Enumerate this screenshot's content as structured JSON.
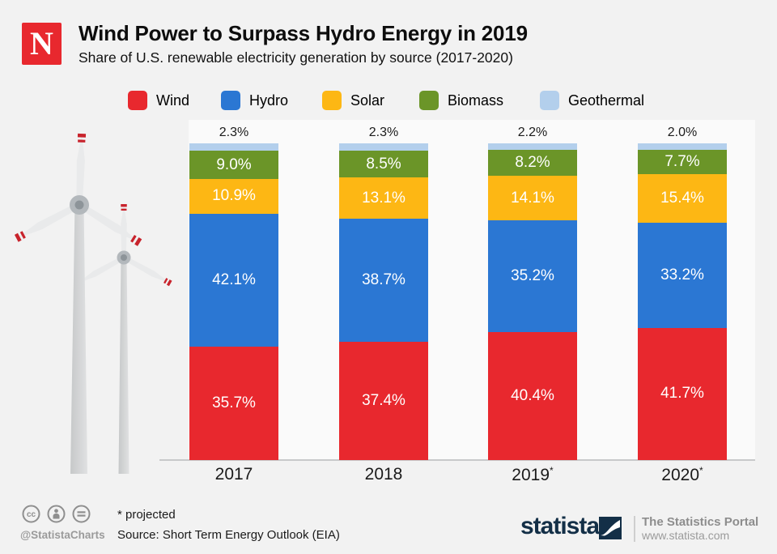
{
  "header": {
    "logo_letter": "N",
    "title": "Wind Power to Surpass Hydro Energy in 2019",
    "subtitle": "Share of U.S. renewable electricity generation by source (2017-2020)"
  },
  "chart_data": {
    "type": "bar",
    "variant": "stacked-percentage",
    "title": "Wind Power to Surpass Hydro Energy in 2019",
    "subtitle": "Share of U.S. renewable electricity generation by source (2017-2020)",
    "unit": "%",
    "ylim": [
      0,
      100
    ],
    "legend_position": "top",
    "categories": [
      {
        "label": "2017",
        "suffix": ""
      },
      {
        "label": "2018",
        "suffix": ""
      },
      {
        "label": "2019",
        "suffix": "*"
      },
      {
        "label": "2020",
        "suffix": "*"
      }
    ],
    "series": [
      {
        "name": "Wind",
        "color": "#e8282e",
        "label_inside": true,
        "values": [
          35.7,
          37.4,
          40.4,
          41.7
        ]
      },
      {
        "name": "Hydro",
        "color": "#2b77d3",
        "label_inside": true,
        "values": [
          42.1,
          38.7,
          35.2,
          33.2
        ]
      },
      {
        "name": "Solar",
        "color": "#fdb714",
        "label_inside": true,
        "values": [
          10.9,
          13.1,
          14.1,
          15.4
        ]
      },
      {
        "name": "Biomass",
        "color": "#6b9528",
        "label_inside": true,
        "values": [
          9.0,
          8.5,
          8.2,
          7.7
        ]
      },
      {
        "name": "Geothermal",
        "color": "#b3cfec",
        "label_inside": false,
        "values": [
          2.3,
          2.3,
          2.2,
          2.0
        ]
      }
    ]
  },
  "footer": {
    "footnote": "* projected",
    "source": "Source: Short Term Energy Outlook (EIA)",
    "handle": "@StatistaCharts",
    "cc_license": [
      "cc",
      "by",
      "nd"
    ],
    "branding": {
      "logo_text": "statista",
      "tagline": "The Statistics Portal",
      "url": "www.statista.com"
    }
  },
  "colors": {
    "canvas": "#f2f2f2",
    "plot_background": "#fafafa",
    "axis_line": "#c8c9ca",
    "brand_red": "#e8282e",
    "brand_navy": "#132f47",
    "muted_text": "#9b9b9b"
  }
}
